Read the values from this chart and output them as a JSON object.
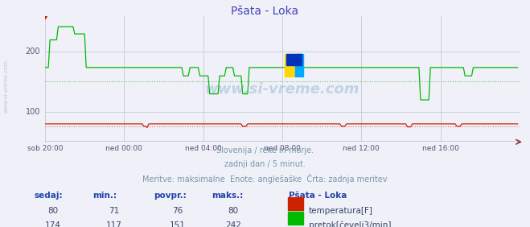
{
  "title": "Pšata - Loka",
  "title_color": "#4444bb",
  "bg_color": "#f0f0f8",
  "plot_bg_color": "#f0f0f8",
  "grid_color": "#c8c8d8",
  "xlim": [
    0,
    288
  ],
  "ylim": [
    50,
    260
  ],
  "yticks": [
    100,
    200
  ],
  "tick_labels_x": [
    "sob 20:00",
    "ned 00:00",
    "ned 04:00",
    "ned 08:00",
    "ned 12:00",
    "ned 16:00"
  ],
  "tick_pos_x": [
    0,
    48,
    96,
    144,
    192,
    240
  ],
  "temp_color": "#cc2200",
  "flow_color": "#00bb00",
  "temp_avg_color": "#dd6666",
  "flow_avg_color": "#66bb66",
  "watermark_text": "www.si-vreme.com",
  "watermark_color": "#4488bb",
  "watermark_alpha": 0.28,
  "subtitle1": "Slovenija / reke in morje.",
  "subtitle2": "zadnji dan / 5 minut.",
  "subtitle3": "Meritve: maksimalne  Enote: anglešaške  Črta: zadnja meritev",
  "subtitle_color": "#7799aa",
  "table_header_color": "#2244aa",
  "table_value_color": "#334466",
  "legend_title": "Pšata - Loka",
  "legend_title_color": "#2244aa",
  "temp_label": "temperatura[F]",
  "flow_label": "pretok[čevelj3/min]",
  "temp_sedaj": 80,
  "temp_min": 71,
  "temp_povpr": 76,
  "temp_maks": 80,
  "flow_sedaj": 174,
  "flow_min": 117,
  "flow_povpr": 151,
  "flow_maks": 242,
  "temp_avg_val": 76,
  "flow_avg_val": 151,
  "sidebar_color": "#9999bb",
  "sidebar_alpha": 0.5
}
